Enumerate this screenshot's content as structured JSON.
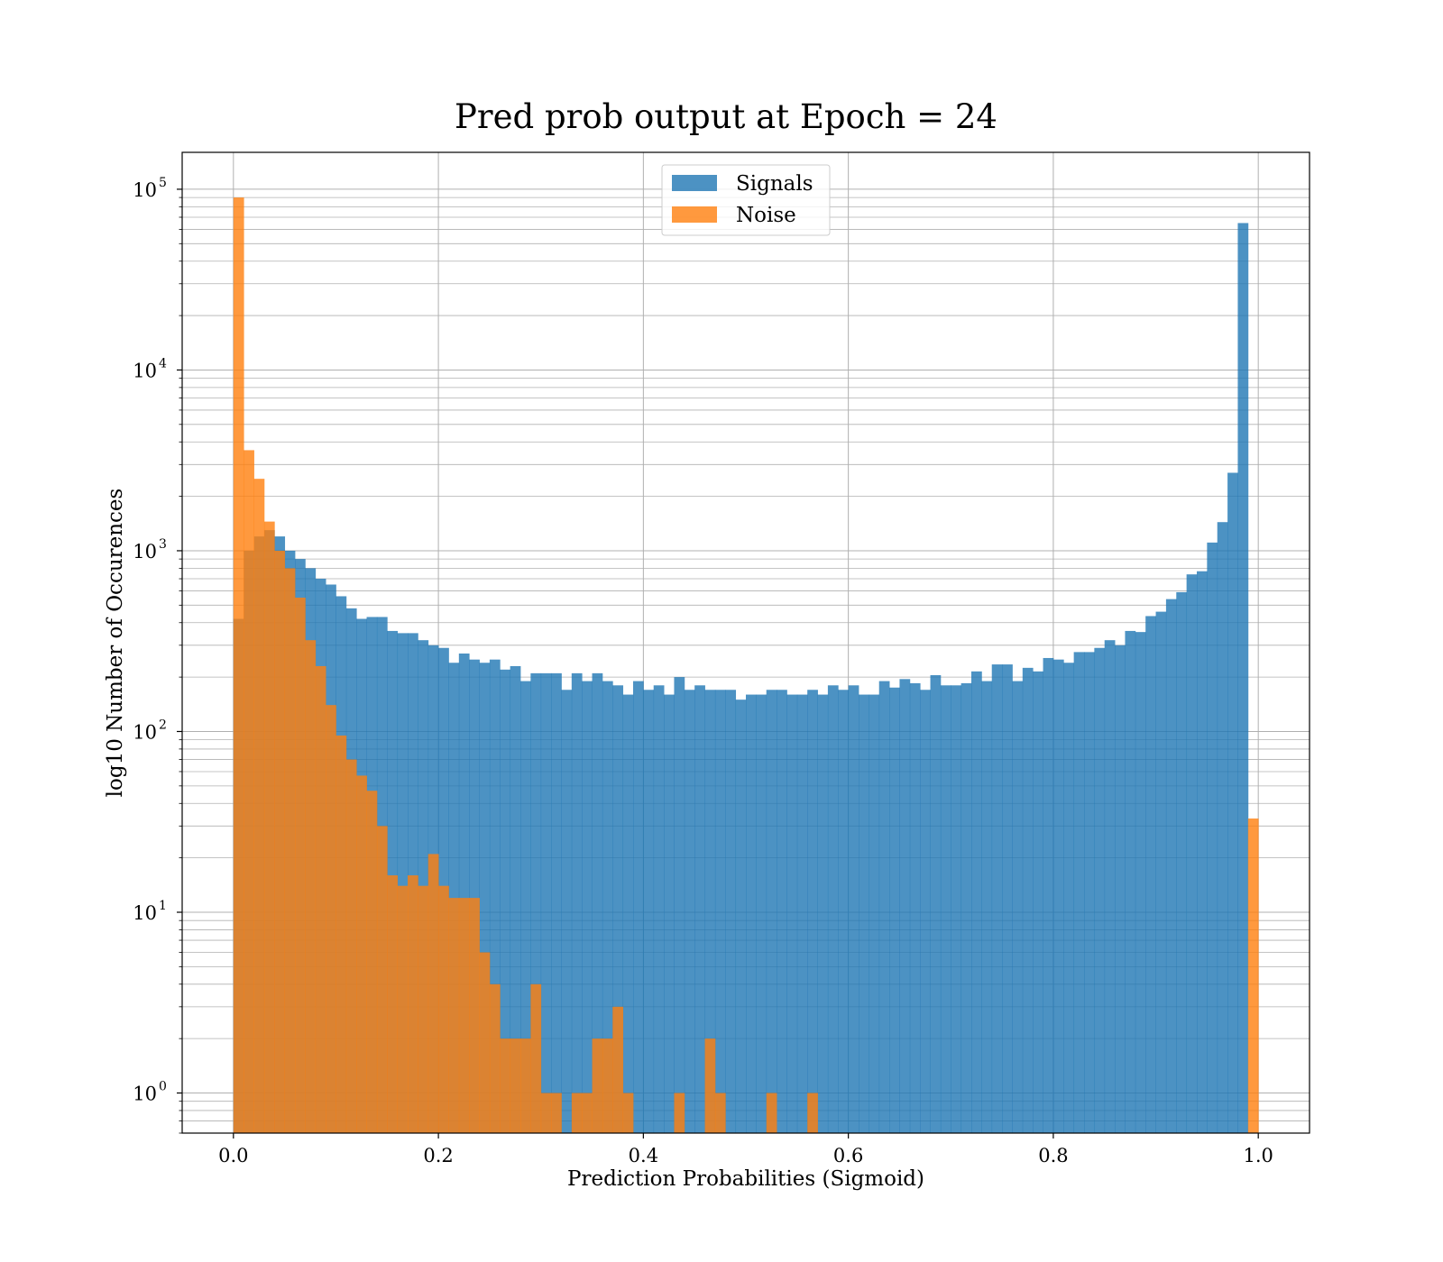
{
  "chart_data": {
    "type": "bar",
    "title": "Pred prob output at Epoch = 24",
    "xlabel": "Prediction Probabilities (Sigmoid)",
    "ylabel": "log10 Number of Occurences",
    "x_scale": "linear",
    "y_scale": "log",
    "xlim": [
      -0.05,
      1.05
    ],
    "ylim": [
      0.6,
      160000
    ],
    "x_ticks": [
      0.0,
      0.2,
      0.4,
      0.6,
      0.8,
      1.0
    ],
    "x_tick_labels": [
      "0.0",
      "0.2",
      "0.4",
      "0.6",
      "0.8",
      "1.0"
    ],
    "y_ticks": [
      1,
      10,
      100,
      1000,
      10000,
      100000
    ],
    "y_tick_labels": [
      {
        "base": "10",
        "exp": "0"
      },
      {
        "base": "10",
        "exp": "1"
      },
      {
        "base": "10",
        "exp": "2"
      },
      {
        "base": "10",
        "exp": "3"
      },
      {
        "base": "10",
        "exp": "4"
      },
      {
        "base": "10",
        "exp": "5"
      }
    ],
    "grid": true,
    "legend_position": "top-center",
    "bin_range": [
      0,
      1
    ],
    "bin_count": 100,
    "series": [
      {
        "name": "Signals",
        "color": "#1f77b4",
        "opacity": 0.8,
        "values": [
          420,
          1000,
          1200,
          1300,
          1200,
          1000,
          900,
          800,
          700,
          650,
          560,
          480,
          420,
          430,
          430,
          360,
          350,
          350,
          320,
          300,
          290,
          240,
          270,
          250,
          240,
          250,
          220,
          230,
          190,
          210,
          210,
          210,
          170,
          210,
          190,
          210,
          190,
          180,
          160,
          190,
          170,
          180,
          160,
          200,
          170,
          180,
          170,
          170,
          170,
          150,
          160,
          160,
          170,
          170,
          160,
          160,
          170,
          160,
          180,
          170,
          180,
          160,
          160,
          190,
          175,
          195,
          185,
          170,
          205,
          180,
          180,
          185,
          215,
          190,
          235,
          235,
          190,
          225,
          215,
          255,
          250,
          240,
          275,
          275,
          290,
          320,
          300,
          360,
          355,
          435,
          460,
          540,
          590,
          740,
          770,
          1110,
          1440,
          2700,
          65000,
          0
        ]
      },
      {
        "name": "Noise",
        "color": "#ff7f0e",
        "opacity": 0.8,
        "values": [
          90000,
          3600,
          2500,
          1450,
          1000,
          800,
          550,
          320,
          230,
          140,
          95,
          70,
          57,
          47,
          30,
          16,
          14,
          16,
          14,
          21,
          14,
          12,
          12,
          12,
          6,
          4,
          2,
          2,
          2,
          4,
          1,
          1,
          0,
          1,
          1,
          2,
          2,
          3,
          1,
          0,
          0,
          0,
          0,
          1,
          0,
          0,
          2,
          1,
          0,
          0,
          0,
          0,
          1,
          0,
          0,
          0,
          1,
          0,
          0,
          0,
          0,
          0,
          0,
          0,
          0,
          0,
          0,
          0,
          0,
          0,
          0,
          0,
          0,
          0,
          0,
          0,
          0,
          0,
          0,
          0,
          0,
          0,
          0,
          0,
          0,
          0,
          0,
          0,
          0,
          0,
          0,
          0,
          0,
          0,
          0,
          0,
          0,
          0,
          0,
          33
        ]
      }
    ]
  }
}
